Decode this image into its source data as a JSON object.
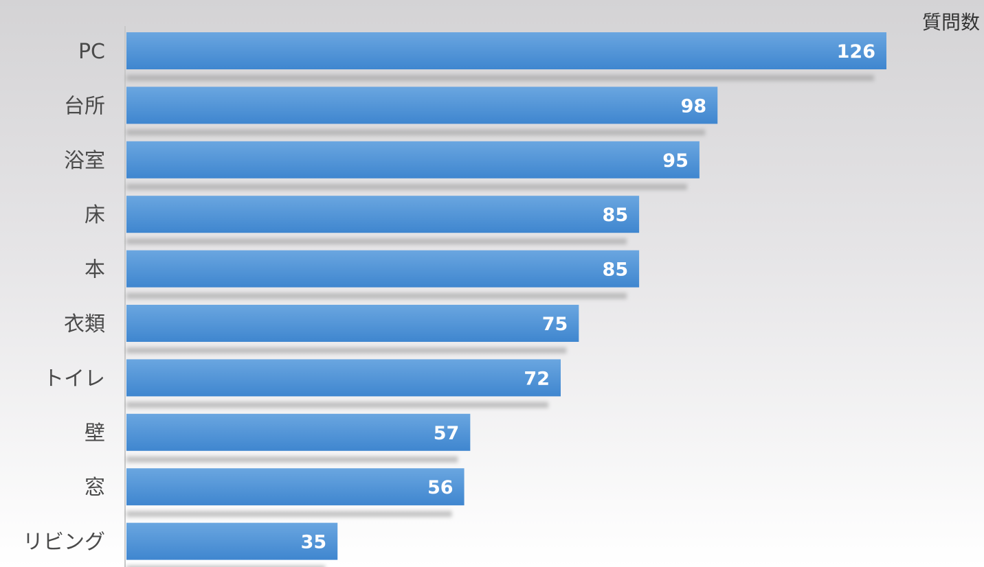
{
  "chart_data": {
    "type": "bar",
    "orientation": "horizontal",
    "categories": [
      "PC",
      "台所",
      "浴室",
      "床",
      "本",
      "衣類",
      "トイレ",
      "壁",
      "窓",
      "リビング"
    ],
    "values": [
      126,
      98,
      95,
      85,
      85,
      75,
      72,
      57,
      56,
      35
    ],
    "data_labels": [
      "126",
      "98",
      "95",
      "85",
      "85",
      "75",
      "72",
      "57",
      "56",
      "35"
    ],
    "unit_label": "質問数",
    "xlim": [
      0,
      126
    ],
    "grid": false,
    "legend": "none",
    "colors": {
      "bar_top": "#6aa6e0",
      "bar_bottom": "#3f86cf",
      "shadow": "#9a9a9a",
      "axis": "#c8c8c8"
    }
  }
}
